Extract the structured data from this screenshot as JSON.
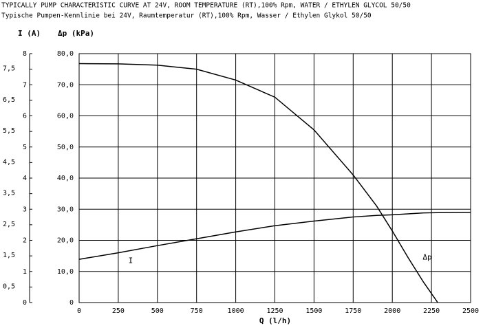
{
  "chart_data": {
    "type": "line",
    "title": "TYPICALLY PUMP CHARACTERISTIC CURVE AT 24V, ROOM TEMPERATURE (RT),100% Rpm, WATER / ETHYLEN GLYCOL 50/50",
    "subtitle": "Typische Pumpen-Kennlinie bei 24V, Raumtemperatur (RT),100% Rpm, Wasser / Ethylen Glykol 50/50",
    "x_label": "Q (l/h)",
    "y_label": "Δp (kPa)",
    "y2_label": "I (A)",
    "x": [
      0,
      250,
      500,
      750,
      1000,
      1250,
      1500,
      1750,
      1900,
      2000,
      2100,
      2200,
      2290,
      2500
    ],
    "series": [
      {
        "name": "Δp",
        "color": "#000000",
        "values": [
          76.8,
          76.7,
          76.3,
          75.0,
          71.5,
          66.0,
          55.5,
          41.0,
          31.0,
          23.0,
          14.5,
          6.5,
          0,
          null
        ]
      },
      {
        "name": "I",
        "color": "#000000",
        "axis": "y2",
        "values": [
          1.39,
          1.6,
          1.83,
          2.05,
          2.27,
          2.47,
          2.62,
          2.75,
          2.8,
          2.82,
          2.85,
          2.88,
          2.89,
          2.9
        ]
      }
    ],
    "xlim": [
      0,
      2500
    ],
    "xticks": [
      0,
      250,
      500,
      750,
      1000,
      1250,
      1500,
      1750,
      2000,
      2250,
      2500
    ],
    "ylim": [
      0,
      80
    ],
    "yticks": [
      0,
      {
        "value": 10,
        "label": "10,0"
      },
      {
        "value": 20,
        "label": "20,0"
      },
      {
        "value": 30,
        "label": "30,0"
      },
      {
        "value": 40,
        "label": "40,0"
      },
      {
        "value": 50,
        "label": "50,0"
      },
      {
        "value": 60,
        "label": "60,0"
      },
      {
        "value": 70,
        "label": "70,0"
      },
      {
        "value": 80,
        "label": "80,0"
      }
    ],
    "y2lim": [
      0,
      8
    ],
    "y2ticks": [
      0,
      {
        "value": 0.5,
        "label": "0,5"
      },
      1,
      {
        "value": 1.5,
        "label": "1,5"
      },
      2,
      {
        "value": 2.5,
        "label": "2,5"
      },
      3,
      {
        "value": 3.5,
        "label": "3,5"
      },
      4,
      {
        "value": 4.5,
        "label": "4,5"
      },
      5,
      {
        "value": 5.5,
        "label": "5,5"
      },
      6,
      {
        "value": 6.5,
        "label": "6,5"
      },
      7,
      {
        "value": 7.5,
        "label": "7,5"
      },
      8
    ],
    "grid": true
  }
}
